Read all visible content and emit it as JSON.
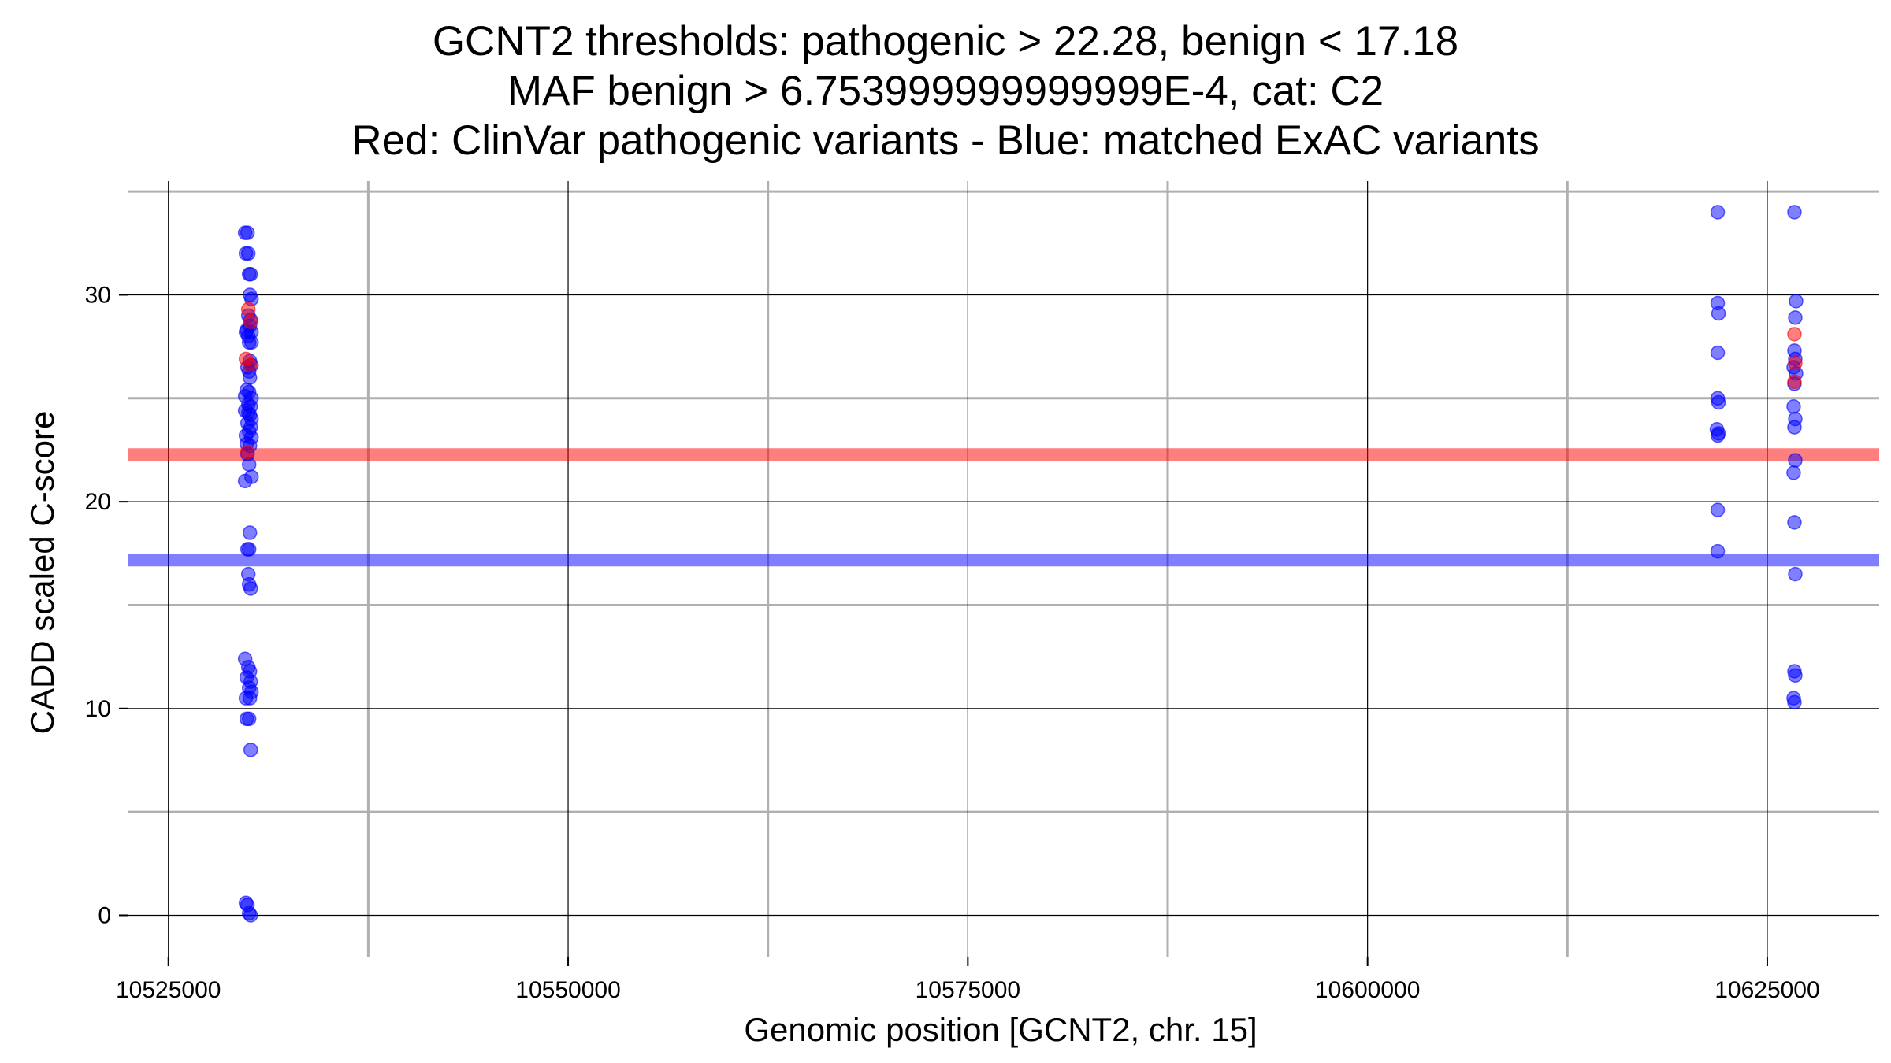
{
  "title_lines": [
    "GCNT2 thresholds: pathogenic > 22.28, benign < 17.18",
    "MAF benign > 6.753999999999999E-4, cat: C2",
    "Red: ClinVar pathogenic variants - Blue: matched ExAC variants"
  ],
  "chart_data": {
    "type": "scatter",
    "title": "GCNT2 thresholds: pathogenic > 22.28, benign < 17.18 / MAF benign > 6.753999999999999E-4, cat: C2 / Red: ClinVar pathogenic variants - Blue: matched ExAC variants",
    "xlabel": "Genomic position [GCNT2, chr. 15]",
    "ylabel": "CADD scaled C-score",
    "xlim": [
      10522500,
      10632000
    ],
    "ylim": [
      -2,
      35.5
    ],
    "x_ticks": [
      10525000,
      10550000,
      10575000,
      10600000,
      10625000
    ],
    "x_tick_labels": [
      "10525000",
      "10550000",
      "10575000",
      "10600000",
      "10625000"
    ],
    "y_ticks": [
      0,
      10,
      20,
      30
    ],
    "y_tick_labels": [
      "0",
      "10",
      "20",
      "30"
    ],
    "grid": true,
    "thresholds": [
      {
        "label": "pathogenic",
        "value": 22.28,
        "color": "#ff0000"
      },
      {
        "label": "benign",
        "value": 17.18,
        "color": "#0000ff"
      }
    ],
    "series": [
      {
        "color": "#0000ff",
        "points": [
          [
            10529800,
            33
          ],
          [
            10529950,
            33
          ],
          [
            10529850,
            32
          ],
          [
            10530000,
            32
          ],
          [
            10530050,
            31
          ],
          [
            10530150,
            31
          ],
          [
            10530100,
            30
          ],
          [
            10530200,
            29.8
          ],
          [
            10530000,
            29
          ],
          [
            10530150,
            28.8
          ],
          [
            10529900,
            28.3
          ],
          [
            10530100,
            28.5
          ],
          [
            10530200,
            28.2
          ],
          [
            10530000,
            28
          ],
          [
            10529850,
            28.2
          ],
          [
            10530050,
            27.7
          ],
          [
            10530200,
            27.7
          ],
          [
            10530100,
            26.8
          ],
          [
            10530200,
            26.6
          ],
          [
            10530050,
            26.3
          ],
          [
            10529950,
            26.5
          ],
          [
            10530100,
            26
          ],
          [
            10529900,
            25.4
          ],
          [
            10530050,
            25.3
          ],
          [
            10530200,
            25
          ],
          [
            10529800,
            25.1
          ],
          [
            10530000,
            24.7
          ],
          [
            10530150,
            24.6
          ],
          [
            10529800,
            24.4
          ],
          [
            10530000,
            24.3
          ],
          [
            10530100,
            24.2
          ],
          [
            10530200,
            24
          ],
          [
            10529950,
            23.8
          ],
          [
            10530150,
            23.6
          ],
          [
            10530050,
            23.4
          ],
          [
            10529850,
            23.2
          ],
          [
            10530200,
            23.1
          ],
          [
            10529900,
            22.8
          ],
          [
            10530100,
            22.7
          ],
          [
            10529950,
            22.3
          ],
          [
            10530050,
            21.8
          ],
          [
            10530200,
            21.2
          ],
          [
            10529800,
            21
          ],
          [
            10530100,
            18.5
          ],
          [
            10529950,
            17.7
          ],
          [
            10530050,
            17.7
          ],
          [
            10530000,
            16.5
          ],
          [
            10530050,
            16
          ],
          [
            10530150,
            15.8
          ],
          [
            10529800,
            12.4
          ],
          [
            10530000,
            12
          ],
          [
            10530100,
            11.8
          ],
          [
            10529900,
            11.5
          ],
          [
            10530150,
            11.3
          ],
          [
            10530050,
            11
          ],
          [
            10530200,
            10.8
          ],
          [
            10529850,
            10.5
          ],
          [
            10530100,
            10.5
          ],
          [
            10529900,
            9.5
          ],
          [
            10530050,
            9.5
          ],
          [
            10530150,
            8
          ],
          [
            10529850,
            0.6
          ],
          [
            10529950,
            0.5
          ],
          [
            10530050,
            0.1
          ],
          [
            10530150,
            0
          ],
          [
            10621900,
            34
          ],
          [
            10621900,
            29.6
          ],
          [
            10621950,
            29.1
          ],
          [
            10621900,
            27.2
          ],
          [
            10621900,
            25
          ],
          [
            10621950,
            24.8
          ],
          [
            10621850,
            23.5
          ],
          [
            10621950,
            23.3
          ],
          [
            10621900,
            23.2
          ],
          [
            10621900,
            19.6
          ],
          [
            10621900,
            17.6
          ],
          [
            10626700,
            34
          ],
          [
            10626800,
            29.7
          ],
          [
            10626750,
            28.9
          ],
          [
            10626700,
            27.3
          ],
          [
            10626750,
            26.9
          ],
          [
            10626650,
            26.5
          ],
          [
            10626800,
            26.2
          ],
          [
            10626700,
            25.7
          ],
          [
            10626650,
            24.6
          ],
          [
            10626750,
            24
          ],
          [
            10626700,
            23.6
          ],
          [
            10626750,
            22
          ],
          [
            10626650,
            21.4
          ],
          [
            10626700,
            19
          ],
          [
            10626750,
            16.5
          ],
          [
            10626700,
            11.8
          ],
          [
            10626750,
            11.6
          ],
          [
            10626650,
            10.5
          ],
          [
            10626700,
            10.3
          ]
        ]
      },
      {
        "color": "#ff0000",
        "points": [
          [
            10530000,
            29.3
          ],
          [
            10530150,
            28.7
          ],
          [
            10529850,
            26.9
          ],
          [
            10530100,
            26.6
          ],
          [
            10529950,
            22.4
          ],
          [
            10626700,
            28.1
          ],
          [
            10626750,
            26.7
          ],
          [
            10626700,
            25.8
          ]
        ]
      }
    ]
  }
}
